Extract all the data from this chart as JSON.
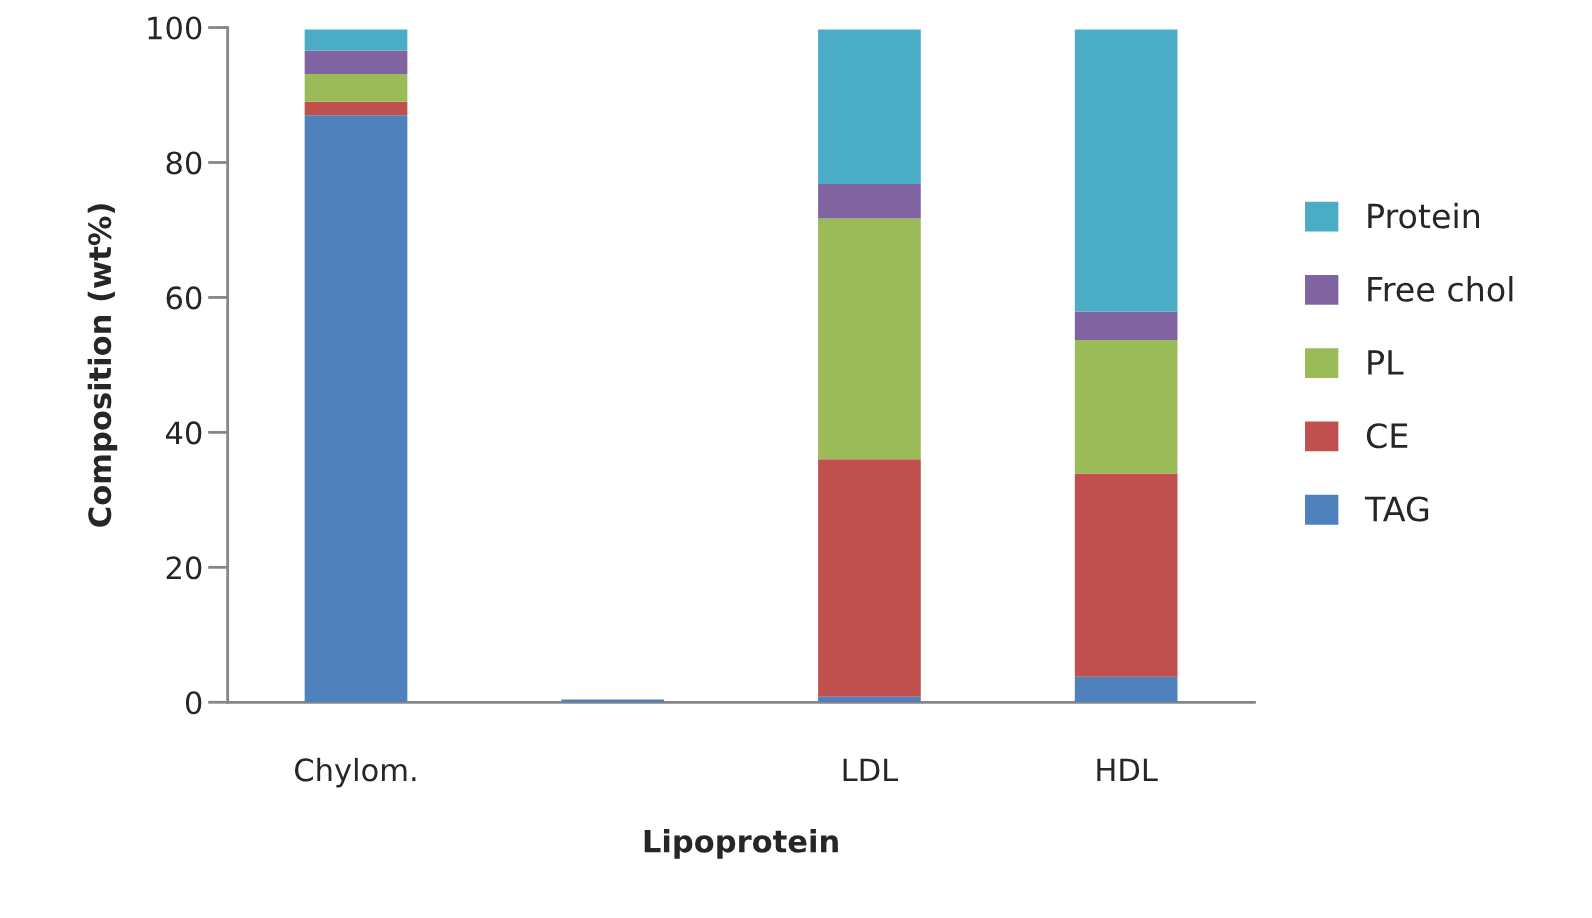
{
  "chart_data": {
    "type": "bar",
    "stacked": true,
    "xlabel": "Lipoprotein",
    "ylabel": "Composition (wt%)",
    "categories": [
      "Chylom.",
      null,
      "LDL",
      "HDL"
    ],
    "series": [
      {
        "name": "TAG",
        "color": "#4f81bd",
        "values": [
          87.0,
          0.4,
          0.8,
          3.8
        ]
      },
      {
        "name": "CE",
        "color": "#c0504d",
        "values": [
          2.0,
          null,
          35.2,
          30.1
        ]
      },
      {
        "name": "PL",
        "color": "#9bbb59",
        "values": [
          4.1,
          null,
          35.7,
          19.8
        ]
      },
      {
        "name": "Free chol",
        "color": "#8064a2",
        "values": [
          3.5,
          null,
          5.1,
          4.2
        ]
      },
      {
        "name": "Protein",
        "color": "#4bacc6",
        "values": [
          3.1,
          null,
          22.9,
          41.8
        ]
      }
    ],
    "ylim": [
      0,
      100
    ],
    "yticks": [
      0,
      20,
      40,
      60,
      80,
      100
    ],
    "grid": false,
    "legend": "right"
  }
}
